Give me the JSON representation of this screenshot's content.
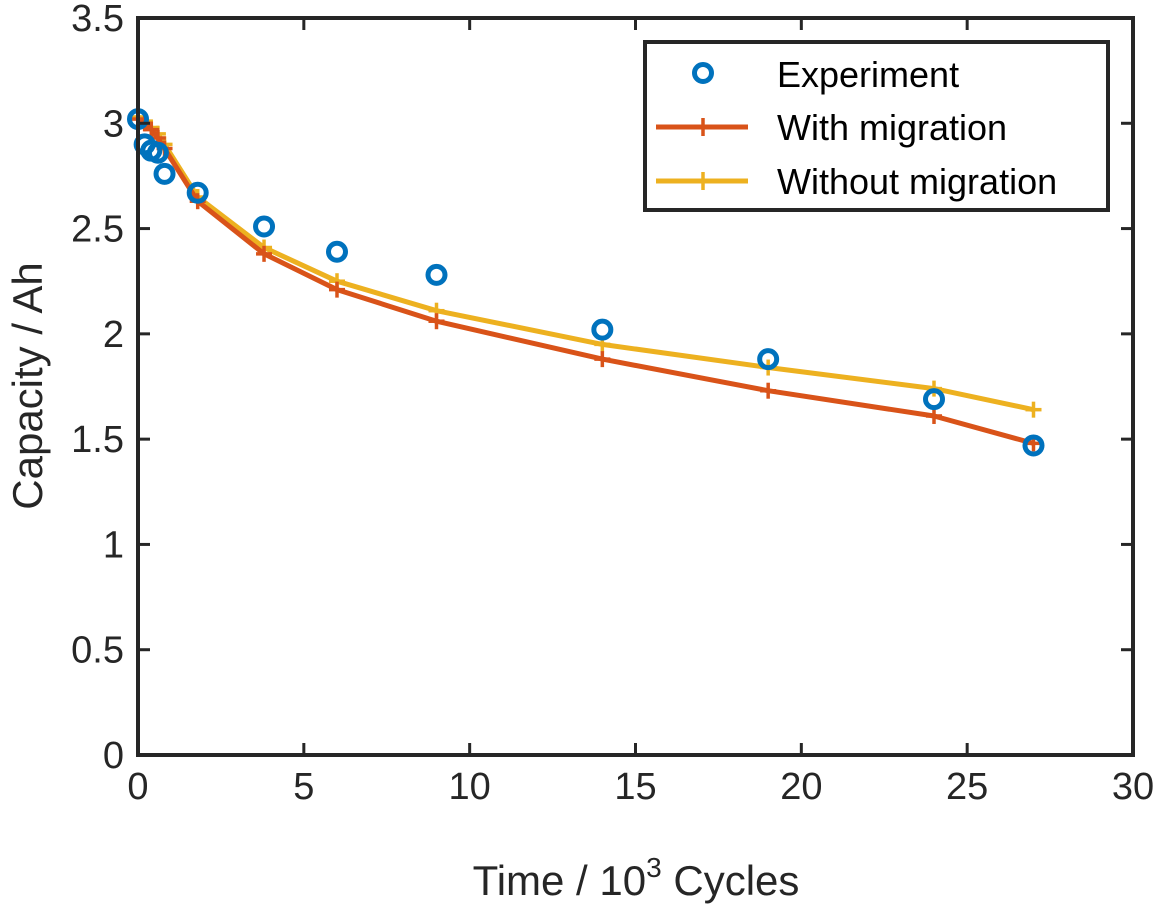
{
  "chart_data": {
    "type": "line",
    "xlabel": {
      "prefix": "Time  /  10",
      "superscript": "3",
      "suffix": " Cycles"
    },
    "ylabel": "Capacity  /  Ah",
    "xlim": [
      0,
      30
    ],
    "ylim": [
      0,
      3.5
    ],
    "xticks": [
      0,
      5,
      10,
      15,
      20,
      25,
      30
    ],
    "xtick_labels": [
      "0",
      "5",
      "10",
      "15",
      "20",
      "25",
      "30"
    ],
    "yticks": [
      0,
      0.5,
      1,
      1.5,
      2,
      2.5,
      3,
      3.5
    ],
    "ytick_labels": [
      "0",
      "0.5",
      "1",
      "1.5",
      "2",
      "2.5",
      "3",
      "3.5"
    ],
    "grid": false,
    "legend_position": "top-right",
    "series": [
      {
        "name": "Experiment",
        "style": "markers",
        "marker": "circle",
        "color": "#0072BD",
        "x": [
          0,
          0.2,
          0.4,
          0.6,
          0.8,
          1.8,
          3.8,
          6.0,
          9.0,
          14.0,
          19.0,
          24.0,
          27.0
        ],
        "y": [
          3.02,
          2.9,
          2.87,
          2.86,
          2.76,
          2.67,
          2.51,
          2.39,
          2.28,
          2.02,
          1.88,
          1.69,
          1.47
        ]
      },
      {
        "name": "With migration",
        "style": "line-markers",
        "marker": "plus",
        "color": "#D95319",
        "x": [
          0,
          0.2,
          0.4,
          0.6,
          0.8,
          1.8,
          3.8,
          6.0,
          9.0,
          14.0,
          19.0,
          24.0,
          27.0
        ],
        "y": [
          3.02,
          3.0,
          2.97,
          2.93,
          2.88,
          2.63,
          2.38,
          2.21,
          2.06,
          1.88,
          1.73,
          1.61,
          1.48
        ]
      },
      {
        "name": "Without migration",
        "style": "line-markers",
        "marker": "plus",
        "color": "#EDB120",
        "x": [
          0,
          0.2,
          0.4,
          0.6,
          0.8,
          1.8,
          3.8,
          6.0,
          9.0,
          14.0,
          19.0,
          24.0,
          27.0
        ],
        "y": [
          3.03,
          3.01,
          2.98,
          2.95,
          2.9,
          2.65,
          2.41,
          2.25,
          2.11,
          1.95,
          1.84,
          1.74,
          1.64
        ]
      }
    ]
  }
}
